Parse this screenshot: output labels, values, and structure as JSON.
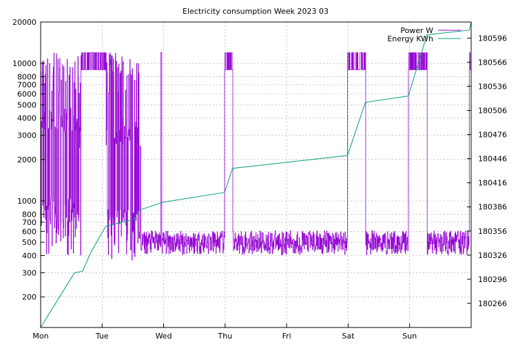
{
  "chart_data": {
    "type": "line",
    "title": "Electricity consumption Week 2023 03",
    "x_axis": {
      "labels": [
        "Mon",
        "Tue",
        "Wed",
        "Thu",
        "Fri",
        "Sat",
        "Sun"
      ],
      "range_days": [
        0,
        7
      ]
    },
    "y_left": {
      "scale": "log",
      "range": [
        120,
        20000
      ],
      "ticks": [
        200,
        300,
        400,
        500,
        600,
        700,
        800,
        1000,
        2000,
        3000,
        4000,
        5000,
        6000,
        7000,
        8000,
        10000,
        20000
      ],
      "tick_labels": [
        "200",
        "300",
        "400",
        "500",
        "600",
        "700",
        "800",
        "1000",
        "2000",
        "3000",
        "4000",
        "5000",
        "6000",
        "7000",
        "8000",
        "10000",
        "20000"
      ]
    },
    "y_right": {
      "scale": "linear",
      "range": [
        180236,
        180616
      ],
      "ticks": [
        180266,
        180296,
        180326,
        180356,
        180386,
        180416,
        180446,
        180476,
        180506,
        180536,
        180566,
        180596
      ],
      "tick_labels": [
        "180266",
        "180296",
        "180326",
        "180356",
        "180386",
        "180416",
        "180446",
        "180476",
        "180506",
        "180536",
        "180566",
        "180596"
      ]
    },
    "grid": true,
    "legend_placement": "top-right",
    "series": [
      {
        "name": "Power W",
        "axis": "left",
        "color": "#9400d3",
        "base_level_w": 450,
        "high_activity": [
          {
            "x_start": 0.0,
            "x_end": 0.55,
            "min_w": 400,
            "max_w": 12000
          },
          {
            "x_start": 0.55,
            "x_end": 1.6,
            "min_w": 340,
            "max_w": 12000
          }
        ],
        "heating_blocks_w": 9000,
        "heating_blocks": [
          {
            "x_start": 0.66,
            "x_end": 1.06
          },
          {
            "x_start": 2.99,
            "x_end": 3.12
          },
          {
            "x_start": 4.99,
            "x_end": 5.28
          },
          {
            "x_start": 5.98,
            "x_end": 6.28
          },
          {
            "x_start": 6.97,
            "x_end": 7.0
          }
        ],
        "spikes": [
          {
            "x": 1.62,
            "w": 2500
          },
          {
            "x": 1.96,
            "w": 12000
          }
        ]
      },
      {
        "name": "Energy KWh",
        "axis": "right",
        "color": "#009e73",
        "points": [
          [
            0.0,
            180236
          ],
          [
            0.55,
            180304
          ],
          [
            0.68,
            180306
          ],
          [
            0.82,
            180330
          ],
          [
            1.06,
            180362
          ],
          [
            1.5,
            180370
          ],
          [
            1.6,
            180382
          ],
          [
            2.0,
            180392
          ],
          [
            2.99,
            180404
          ],
          [
            3.12,
            180434
          ],
          [
            4.99,
            180450
          ],
          [
            5.28,
            180516
          ],
          [
            5.98,
            180524
          ],
          [
            6.28,
            180600
          ],
          [
            6.97,
            180606
          ],
          [
            7.0,
            180616
          ]
        ]
      }
    ]
  }
}
